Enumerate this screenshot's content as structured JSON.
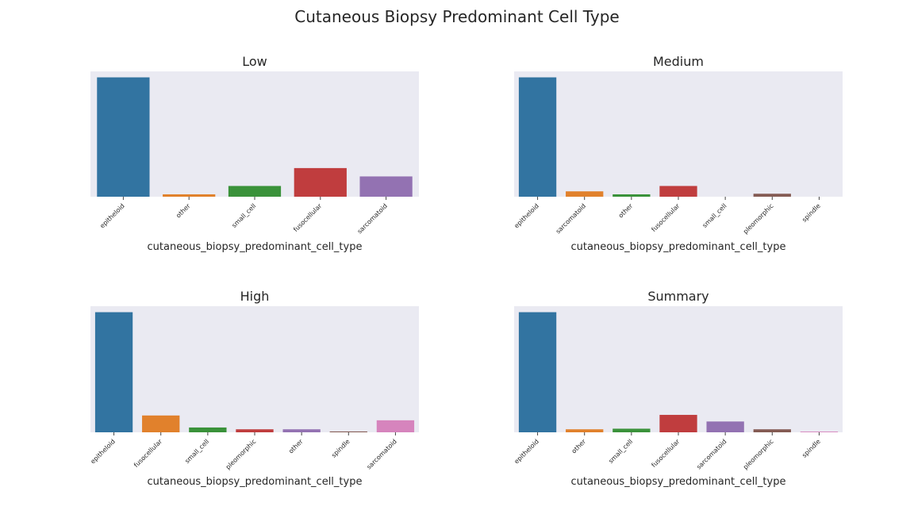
{
  "figure": {
    "title": "Cutaneous Biopsy Predominant Cell Type"
  },
  "colors": {
    "epitheloid": "#3274a1",
    "orange": "#e1812c",
    "green": "#3a923a",
    "red": "#c03d3e",
    "purple": "#9372b2",
    "brown": "#845b53",
    "pink": "#d684bd",
    "background": "#eaeaf2"
  },
  "chart_data": [
    {
      "type": "bar",
      "title": "Low",
      "xlabel": "cutaneous_biopsy_predominant_cell_type",
      "categories": [
        "epitheloid",
        "other",
        "small_cell",
        "fusocellular",
        "sarcomatoid"
      ],
      "values": [
        100,
        2,
        9,
        24,
        17
      ],
      "colors": [
        "#3274a1",
        "#e1812c",
        "#3a923a",
        "#c03d3e",
        "#9372b2"
      ],
      "ylim": [
        0,
        105
      ],
      "grid": false
    },
    {
      "type": "bar",
      "title": "Medium",
      "xlabel": "cutaneous_biopsy_predominant_cell_type",
      "categories": [
        "epitheloid",
        "sarcomatoid",
        "other",
        "fusocellular",
        "small_cell",
        "pleomorphic",
        "spindle"
      ],
      "values": [
        100,
        4.5,
        2,
        9,
        0,
        2.5,
        0
      ],
      "colors": [
        "#3274a1",
        "#e1812c",
        "#3a923a",
        "#c03d3e",
        "#9372b2",
        "#845b53",
        "#d684bd"
      ],
      "ylim": [
        0,
        105
      ],
      "grid": false
    },
    {
      "type": "bar",
      "title": "High",
      "xlabel": "cutaneous_biopsy_predominant_cell_type",
      "categories": [
        "epitheloid",
        "fusocellular",
        "small_cell",
        "pleomorphic",
        "other",
        "spindle",
        "sarcomatoid"
      ],
      "values": [
        100,
        14,
        4,
        2.5,
        2.5,
        0.7,
        10
      ],
      "colors": [
        "#3274a1",
        "#e1812c",
        "#3a923a",
        "#c03d3e",
        "#9372b2",
        "#845b53",
        "#d684bd"
      ],
      "ylim": [
        0,
        105
      ],
      "grid": false
    },
    {
      "type": "bar",
      "title": "Summary",
      "xlabel": "cutaneous_biopsy_predominant_cell_type",
      "categories": [
        "epitheloid",
        "other",
        "small_cell",
        "fusocellular",
        "sarcomatoid",
        "pleomorphic",
        "spindle"
      ],
      "values": [
        100,
        2.5,
        3,
        14.5,
        9,
        2.5,
        0.6
      ],
      "colors": [
        "#3274a1",
        "#e1812c",
        "#3a923a",
        "#c03d3e",
        "#9372b2",
        "#845b53",
        "#d684bd"
      ],
      "ylim": [
        0,
        105
      ],
      "grid": false
    }
  ]
}
